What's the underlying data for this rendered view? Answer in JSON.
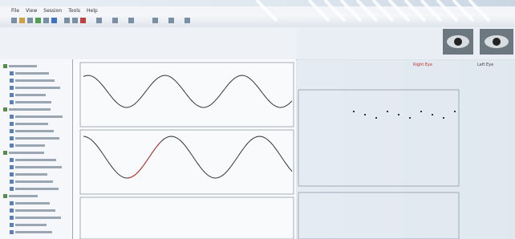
{
  "menu": [
    "File",
    "View",
    "Session",
    "Tools",
    "Help"
  ],
  "eye_labels": {
    "right": "Right Eye",
    "left": "Left Eye"
  }
}
